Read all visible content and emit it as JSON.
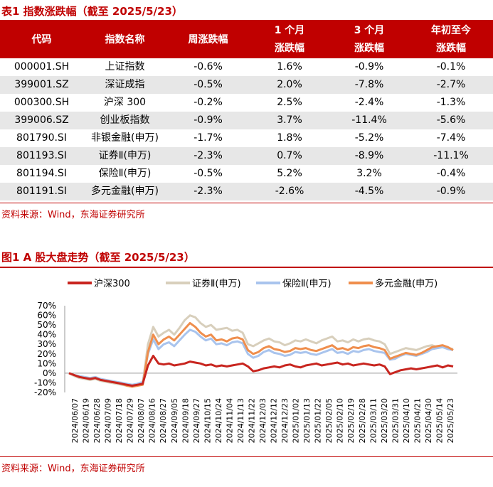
{
  "table": {
    "title": "表1  指数涨跌幅（截至 2025/5/23）",
    "headers": [
      [
        "代码"
      ],
      [
        "指数名称"
      ],
      [
        "周涨跌幅"
      ],
      [
        "1 个月",
        "涨跌幅"
      ],
      [
        "3 个月",
        "涨跌幅"
      ],
      [
        "年初至今",
        "涨跌幅"
      ]
    ],
    "rows": [
      [
        "000001.SH",
        "上证指数",
        "-0.6%",
        "1.6%",
        "-0.9%",
        "-0.1%"
      ],
      [
        "399001.SZ",
        "深证成指",
        "-0.5%",
        "2.0%",
        "-7.8%",
        "-2.7%"
      ],
      [
        "000300.SH",
        "沪深 300",
        "-0.2%",
        "2.5%",
        "-2.4%",
        "-1.3%"
      ],
      [
        "399006.SZ",
        "创业板指数",
        "-0.9%",
        "3.7%",
        "-11.4%",
        "-5.6%"
      ],
      [
        "801790.SI",
        "非银金融(申万)",
        "-1.7%",
        "1.8%",
        "-5.2%",
        "-7.4%"
      ],
      [
        "801193.SI",
        "证券Ⅱ(申万)",
        "-2.3%",
        "0.7%",
        "-8.9%",
        "-11.1%"
      ],
      [
        "801194.SI",
        "保险Ⅱ(申万)",
        "-0.5%",
        "5.2%",
        "3.2%",
        "-0.4%"
      ],
      [
        "801191.SI",
        "多元金融(申万)",
        "-2.3%",
        "-2.6%",
        "-4.5%",
        "-0.9%"
      ]
    ],
    "source": "资料来源：Wind，东海证券研究所"
  },
  "figure": {
    "title": "图1  A 股大盘走势（截至 2025/5/23）",
    "source": "资料来源：Wind，东海证券研究所"
  },
  "chart_data": {
    "type": "line",
    "x_ticks": [
      "2024/06/07",
      "2024/06/19",
      "2024/06/28",
      "2024/07/09",
      "2024/07/18",
      "2024/07/29",
      "2024/08/07",
      "2024/08/16",
      "2024/08/27",
      "2024/09/05",
      "2024/09/18",
      "2024/09/27",
      "2024/10/15",
      "2024/10/24",
      "2024/11/04",
      "2024/11/13",
      "2024/11/22",
      "2024/12/03",
      "2024/12/12",
      "2024/12/23",
      "2025/01/02",
      "2025/01/13",
      "2025/01/22",
      "2025/02/05",
      "2025/02/10",
      "2025/02/19",
      "2025/02/28",
      "2025/03/11",
      "2025/03/20",
      "2025/03/31",
      "2025/04/10",
      "2025/04/21",
      "2025/04/30",
      "2025/05/14",
      "2025/05/23"
    ],
    "y_ticks": [
      "70%",
      "60%",
      "50%",
      "40%",
      "30%",
      "20%",
      "10%",
      "0%",
      "-10%",
      "-20%"
    ],
    "ylim": [
      -20,
      70
    ],
    "legend_position": "top",
    "series": [
      {
        "name": "沪深300",
        "color": "#c8251f",
        "values": [
          0,
          -2,
          -4,
          -5,
          -6,
          -5,
          -7,
          -8,
          -9,
          -10,
          -11,
          -12,
          -13,
          -12,
          -11,
          8,
          18,
          10,
          9,
          10,
          8,
          9,
          10,
          12,
          11,
          10,
          8,
          9,
          7,
          8,
          7,
          8,
          9,
          10,
          7,
          2,
          3,
          5,
          6,
          7,
          6,
          8,
          9,
          7,
          6,
          8,
          9,
          10,
          8,
          9,
          10,
          11,
          9,
          10,
          8,
          9,
          10,
          9,
          8,
          9,
          7,
          -1,
          1,
          3,
          4,
          5,
          4,
          5,
          6,
          7,
          8,
          6,
          8,
          7
        ]
      },
      {
        "name": "证券Ⅱ(申万)",
        "color": "#d8cfbc",
        "values": [
          0,
          -3,
          -5,
          -6,
          -7,
          -6,
          -8,
          -9,
          -10,
          -11,
          -12,
          -13,
          -14,
          -13,
          -11,
          30,
          48,
          38,
          42,
          45,
          40,
          47,
          55,
          60,
          58,
          52,
          48,
          50,
          45,
          46,
          47,
          44,
          45,
          42,
          30,
          28,
          31,
          34,
          36,
          33,
          32,
          29,
          31,
          34,
          33,
          35,
          33,
          31,
          34,
          36,
          38,
          33,
          34,
          32,
          35,
          33,
          35,
          36,
          34,
          33,
          30,
          20,
          22,
          24,
          26,
          25,
          24,
          26,
          28,
          29,
          27,
          28,
          26,
          25
        ]
      },
      {
        "name": "保险Ⅱ(申万)",
        "color": "#a9c4ed",
        "values": [
          0,
          -2,
          -3,
          -4,
          -5,
          -4,
          -6,
          -7,
          -8,
          -9,
          -10,
          -11,
          -12,
          -11,
          -9,
          20,
          35,
          25,
          30,
          32,
          28,
          34,
          40,
          45,
          43,
          38,
          34,
          36,
          30,
          31,
          29,
          32,
          33,
          31,
          20,
          16,
          18,
          22,
          24,
          21,
          20,
          18,
          19,
          22,
          21,
          22,
          20,
          19,
          21,
          23,
          25,
          21,
          22,
          20,
          23,
          22,
          24,
          25,
          23,
          22,
          21,
          14,
          15,
          18,
          20,
          19,
          18,
          20,
          22,
          25,
          26,
          27,
          25,
          24
        ]
      },
      {
        "name": "多元金融(申万)",
        "color": "#ef8e4d",
        "values": [
          0,
          -2,
          -4,
          -5,
          -6,
          -5,
          -7,
          -8,
          -9,
          -10,
          -11,
          -13,
          -14,
          -13,
          -12,
          22,
          40,
          30,
          35,
          38,
          34,
          40,
          46,
          52,
          48,
          42,
          38,
          40,
          34,
          35,
          33,
          36,
          37,
          35,
          24,
          20,
          22,
          26,
          28,
          25,
          24,
          22,
          23,
          26,
          25,
          26,
          24,
          23,
          25,
          27,
          29,
          25,
          26,
          24,
          27,
          26,
          28,
          29,
          27,
          26,
          24,
          15,
          17,
          19,
          21,
          20,
          19,
          21,
          24,
          27,
          28,
          29,
          27,
          24
        ]
      }
    ]
  }
}
